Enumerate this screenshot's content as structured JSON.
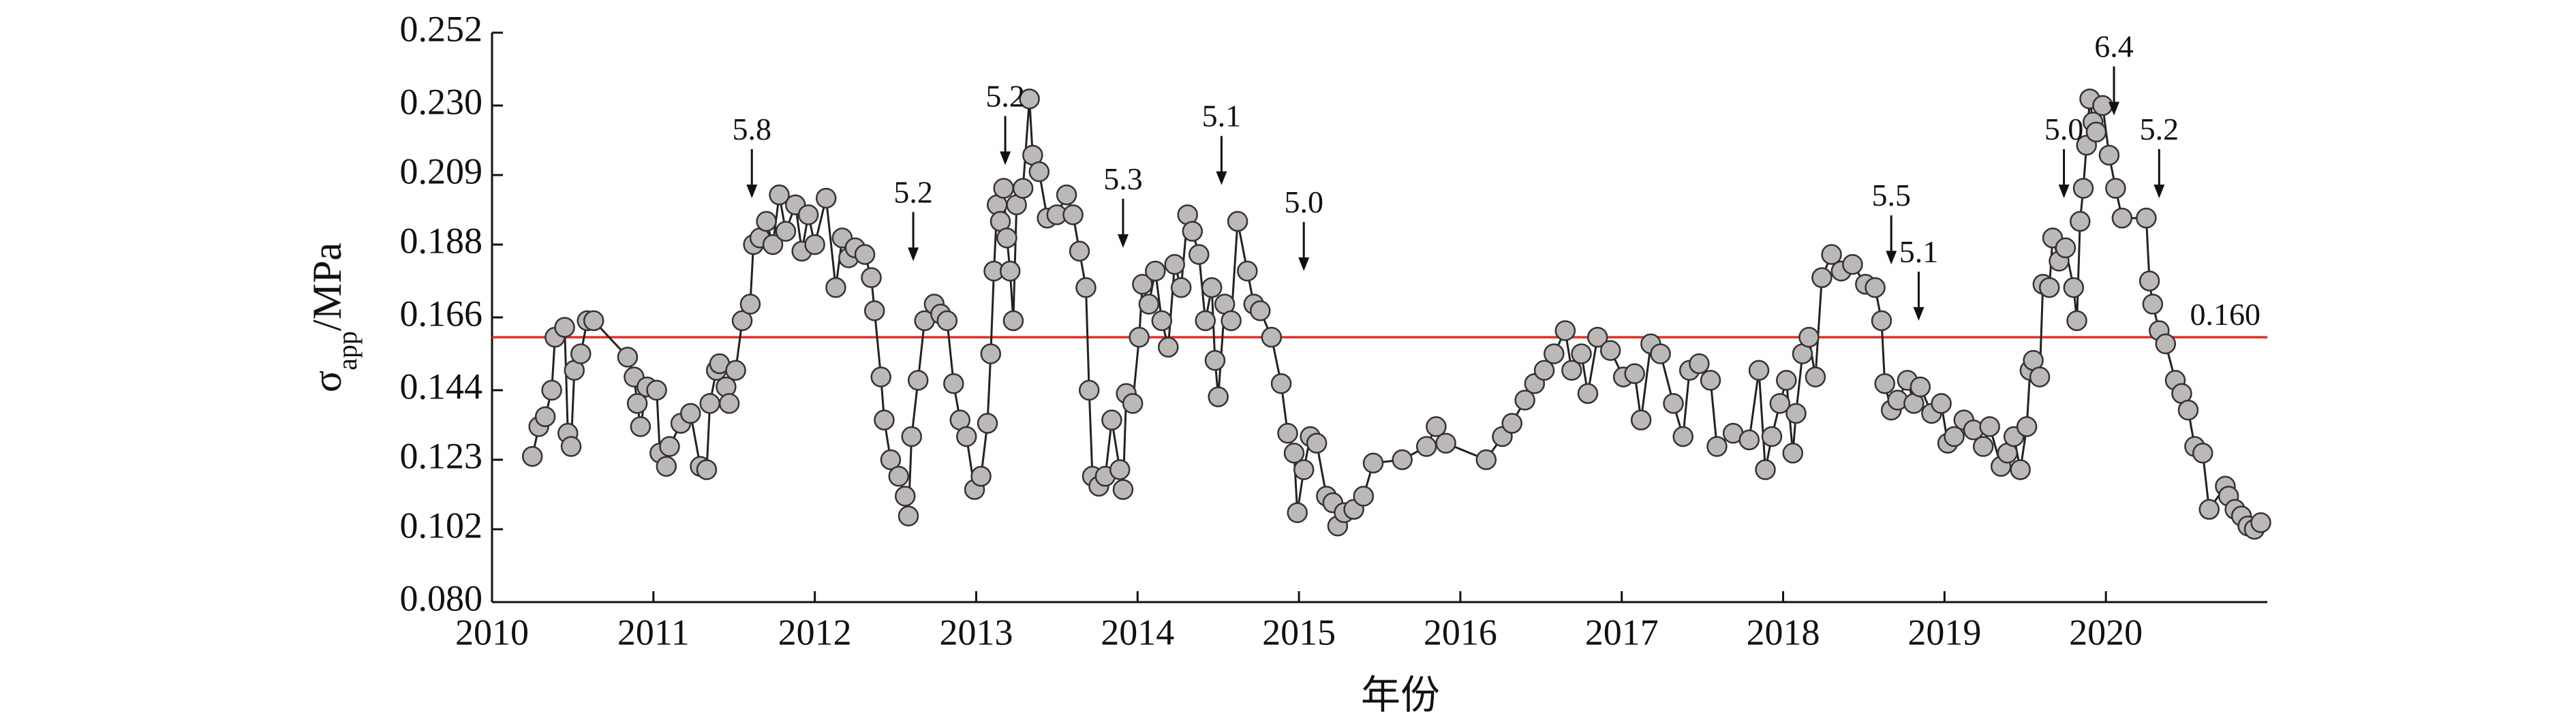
{
  "chart_data": {
    "type": "scatter-line",
    "xlabel": "年份",
    "ylabel": {
      "symbol": "σ",
      "subscript": "app",
      "unit": "/MPa"
    },
    "xlim": [
      2010,
      2021
    ],
    "xticks": [
      2010,
      2011,
      2012,
      2013,
      2014,
      2015,
      2016,
      2017,
      2018,
      2019,
      2020
    ],
    "ylim": [
      0.08,
      0.252
    ],
    "yticks": [
      {
        "value": 0.08,
        "label": "0.080"
      },
      0.102,
      0.123,
      0.144,
      0.166,
      0.188,
      0.209,
      {
        "value": 0.23,
        "label": "0.230"
      },
      0.252
    ],
    "color": "#bcb8b8",
    "line_color": "#222222",
    "threshold": {
      "value": 0.16,
      "label": "0.160",
      "color": "#e0302a"
    },
    "annotations": [
      {
        "text": "5.8",
        "x": 2011.61,
        "y": 0.202
      },
      {
        "text": "5.2",
        "x": 2012.61,
        "y": 0.183
      },
      {
        "text": "5.2",
        "x": 2013.18,
        "y": 0.212
      },
      {
        "text": "5.3",
        "x": 2013.91,
        "y": 0.187
      },
      {
        "text": "5.1",
        "x": 2014.52,
        "y": 0.206
      },
      {
        "text": "5.0",
        "x": 2015.03,
        "y": 0.18
      },
      {
        "text": "5.5",
        "x": 2018.67,
        "y": 0.182
      },
      {
        "text": "5.1",
        "x": 2018.84,
        "y": 0.165
      },
      {
        "text": "5.0",
        "x": 2019.74,
        "y": 0.202
      },
      {
        "text": "6.4",
        "x": 2020.05,
        "y": 0.227
      },
      {
        "text": "5.2",
        "x": 2020.33,
        "y": 0.202
      }
    ],
    "x": [
      2010.25,
      2010.29,
      2010.33,
      2010.37,
      2010.39,
      2010.45,
      2010.47,
      2010.49,
      2010.51,
      2010.55,
      2010.59,
      2010.63,
      2010.84,
      2010.88,
      2010.9,
      2010.92,
      2010.96,
      2011.02,
      2011.04,
      2011.08,
      2011.1,
      2011.17,
      2011.23,
      2011.29,
      2011.33,
      2011.35,
      2011.39,
      2011.41,
      2011.45,
      2011.47,
      2011.51,
      2011.55,
      2011.6,
      2011.62,
      2011.66,
      2011.7,
      2011.74,
      2011.78,
      2011.82,
      2011.88,
      2011.92,
      2011.96,
      2012.0,
      2012.07,
      2012.13,
      2012.17,
      2012.21,
      2012.25,
      2012.31,
      2012.35,
      2012.37,
      2012.41,
      2012.43,
      2012.47,
      2012.52,
      2012.56,
      2012.58,
      2012.6,
      2012.64,
      2012.68,
      2012.74,
      2012.78,
      2012.82,
      2012.86,
      2012.9,
      2012.94,
      2012.99,
      2013.03,
      2013.07,
      2013.09,
      2013.11,
      2013.13,
      2013.15,
      2013.17,
      2013.19,
      2013.21,
      2013.23,
      2013.25,
      2013.29,
      2013.33,
      2013.35,
      2013.39,
      2013.44,
      2013.5,
      2013.56,
      2013.6,
      2013.64,
      2013.68,
      2013.7,
      2013.72,
      2013.76,
      2013.8,
      2013.84,
      2013.89,
      2013.91,
      2013.93,
      2013.97,
      2014.01,
      2014.03,
      2014.07,
      2014.11,
      2014.15,
      2014.19,
      2014.23,
      2014.27,
      2014.31,
      2014.34,
      2014.38,
      2014.42,
      2014.46,
      2014.48,
      2014.5,
      2014.54,
      2014.58,
      2014.62,
      2014.68,
      2014.72,
      2014.76,
      2014.83,
      2014.89,
      2014.93,
      2014.97,
      2014.99,
      2015.03,
      2015.07,
      2015.11,
      2015.17,
      2015.21,
      2015.24,
      2015.28,
      2015.34,
      2015.4,
      2015.46,
      2015.64,
      2015.79,
      2015.85,
      2015.91,
      2016.16,
      2016.26,
      2016.32,
      2016.4,
      2016.46,
      2016.52,
      2016.58,
      2016.65,
      2016.69,
      2016.75,
      2016.79,
      2016.85,
      2016.93,
      2017.01,
      2017.08,
      2017.12,
      2017.18,
      2017.24,
      2017.32,
      2017.38,
      2017.42,
      2017.48,
      2017.55,
      2017.59,
      2017.69,
      2017.79,
      2017.85,
      2017.89,
      2017.93,
      2017.98,
      2018.02,
      2018.06,
      2018.08,
      2018.12,
      2018.16,
      2018.2,
      2018.24,
      2018.3,
      2018.36,
      2018.43,
      2018.51,
      2018.57,
      2018.61,
      2018.63,
      2018.67,
      2018.71,
      2018.77,
      2018.81,
      2018.85,
      2018.92,
      2018.98,
      2019.02,
      2019.06,
      2019.12,
      2019.18,
      2019.24,
      2019.28,
      2019.35,
      2019.39,
      2019.43,
      2019.47,
      2019.51,
      2019.53,
      2019.55,
      2019.59,
      2019.61,
      2019.65,
      2019.67,
      2019.71,
      2019.75,
      2019.8,
      2019.82,
      2019.84,
      2019.86,
      2019.88,
      2019.9,
      2019.92,
      2019.94,
      2019.98,
      2020.02,
      2020.06,
      2020.1,
      2020.25,
      2020.27,
      2020.29,
      2020.33,
      2020.37,
      2020.43,
      2020.47,
      2020.51,
      2020.55,
      2020.6,
      2020.64,
      2020.74,
      2020.76,
      2020.8,
      2020.84,
      2020.88,
      2020.92,
      2020.96
    ],
    "values": [
      0.124,
      0.133,
      0.136,
      0.144,
      0.16,
      0.163,
      0.131,
      0.127,
      0.15,
      0.155,
      0.165,
      0.165,
      0.154,
      0.148,
      0.14,
      0.133,
      0.145,
      0.144,
      0.125,
      0.121,
      0.127,
      0.134,
      0.137,
      0.121,
      0.12,
      0.14,
      0.15,
      0.152,
      0.145,
      0.14,
      0.15,
      0.165,
      0.17,
      0.188,
      0.19,
      0.195,
      0.188,
      0.203,
      0.192,
      0.2,
      0.186,
      0.197,
      0.188,
      0.202,
      0.175,
      0.19,
      0.184,
      0.187,
      0.185,
      0.178,
      0.168,
      0.148,
      0.135,
      0.123,
      0.118,
      0.112,
      0.106,
      0.13,
      0.147,
      0.165,
      0.17,
      0.167,
      0.165,
      0.146,
      0.135,
      0.13,
      0.114,
      0.118,
      0.134,
      0.155,
      0.18,
      0.2,
      0.195,
      0.205,
      0.19,
      0.18,
      0.165,
      0.2,
      0.205,
      0.232,
      0.215,
      0.21,
      0.196,
      0.197,
      0.203,
      0.197,
      0.186,
      0.175,
      0.144,
      0.118,
      0.115,
      0.118,
      0.135,
      0.12,
      0.114,
      0.143,
      0.14,
      0.16,
      0.176,
      0.17,
      0.18,
      0.165,
      0.157,
      0.182,
      0.175,
      0.197,
      0.192,
      0.185,
      0.165,
      0.175,
      0.153,
      0.142,
      0.17,
      0.165,
      0.195,
      0.18,
      0.17,
      0.168,
      0.16,
      0.146,
      0.131,
      0.125,
      0.107,
      0.12,
      0.13,
      0.128,
      0.112,
      0.11,
      0.103,
      0.107,
      0.108,
      0.112,
      0.122,
      0.123,
      0.127,
      0.133,
      0.128,
      0.123,
      0.13,
      0.134,
      0.141,
      0.146,
      0.15,
      0.155,
      0.162,
      0.15,
      0.155,
      0.143,
      0.16,
      0.156,
      0.148,
      0.149,
      0.135,
      0.158,
      0.155,
      0.14,
      0.13,
      0.15,
      0.152,
      0.147,
      0.127,
      0.131,
      0.129,
      0.15,
      0.12,
      0.13,
      0.14,
      0.147,
      0.125,
      0.137,
      0.155,
      0.16,
      0.148,
      0.178,
      0.185,
      0.18,
      0.182,
      0.176,
      0.175,
      0.165,
      0.146,
      0.138,
      0.141,
      0.147,
      0.14,
      0.145,
      0.137,
      0.14,
      0.128,
      0.13,
      0.135,
      0.132,
      0.127,
      0.133,
      0.121,
      0.125,
      0.13,
      0.12,
      0.133,
      0.15,
      0.153,
      0.148,
      0.176,
      0.175,
      0.19,
      0.183,
      0.187,
      0.175,
      0.165,
      0.195,
      0.205,
      0.218,
      0.232,
      0.225,
      0.222,
      0.23,
      0.215,
      0.205,
      0.196,
      0.196,
      0.177,
      0.17,
      0.162,
      0.158,
      0.147,
      0.143,
      0.138,
      0.127,
      0.125,
      0.108,
      0.115,
      0.112,
      0.108,
      0.106,
      0.103,
      0.102,
      0.104
    ]
  }
}
